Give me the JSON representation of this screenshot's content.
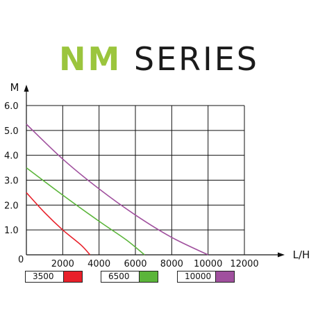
{
  "title": {
    "part1": "NM",
    "part2": "SERIES"
  },
  "colors": {
    "title_accent": "#9bc53d",
    "title_dark": "#1a1a1a",
    "grid": "#111111"
  },
  "chart_data": {
    "type": "line",
    "xlabel": "L/H",
    "ylabel": "M",
    "xlim": [
      0,
      12000
    ],
    "ylim": [
      0,
      6
    ],
    "x_ticks": [
      "2000",
      "4000",
      "6000",
      "8000",
      "10000",
      "12000"
    ],
    "y_ticks": [
      "0",
      "1.0",
      "2.0",
      "3.0",
      "4.0",
      "5.0",
      "6.0"
    ],
    "grid": true,
    "series": [
      {
        "name": "3500",
        "color": "#e8202a",
        "points": [
          [
            0,
            2.5
          ],
          [
            1000,
            1.7
          ],
          [
            2000,
            1.0
          ],
          [
            3000,
            0.4
          ],
          [
            3500,
            0.0
          ]
        ]
      },
      {
        "name": "6500",
        "color": "#5bb53a",
        "points": [
          [
            0,
            3.5
          ],
          [
            2000,
            2.4
          ],
          [
            4000,
            1.35
          ],
          [
            5500,
            0.6
          ],
          [
            6500,
            0.0
          ]
        ]
      },
      {
        "name": "10000",
        "color": "#a0509e",
        "points": [
          [
            0,
            5.25
          ],
          [
            2000,
            3.85
          ],
          [
            4000,
            2.65
          ],
          [
            6000,
            1.6
          ],
          [
            8000,
            0.7
          ],
          [
            10000,
            0.0
          ]
        ]
      }
    ],
    "legend_position": "bottom"
  }
}
